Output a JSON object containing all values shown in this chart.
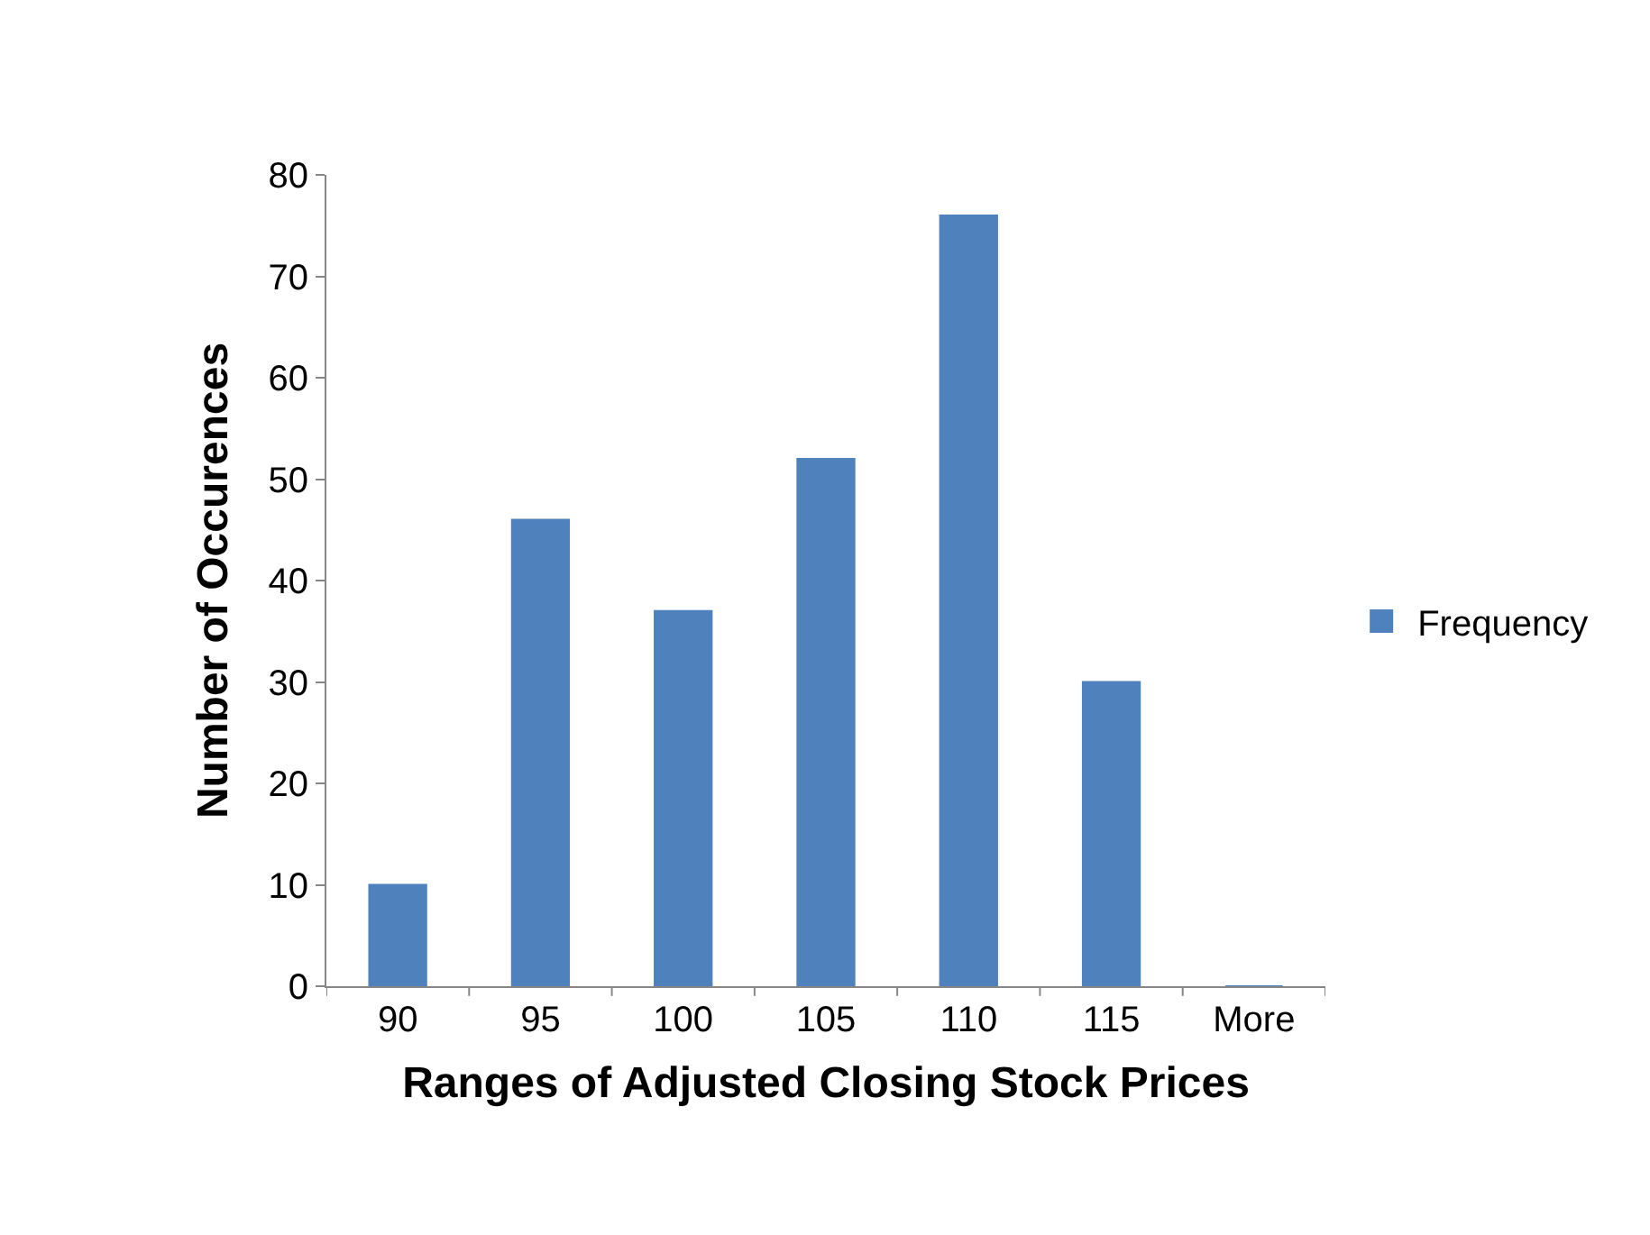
{
  "chart_data": {
    "type": "bar",
    "xlabel": "Ranges of Adjusted Closing Stock Prices",
    "ylabel": "Number of Occurences",
    "categories": [
      "90",
      "95",
      "100",
      "105",
      "110",
      "115",
      "More"
    ],
    "series": [
      {
        "name": "Frequency",
        "color": "#4f81bd",
        "values": [
          10,
          46,
          37,
          52,
          76,
          30,
          0
        ]
      }
    ],
    "ylim": [
      0,
      80
    ],
    "yticks": [
      0,
      10,
      20,
      30,
      40,
      50,
      60,
      70,
      80
    ],
    "legend": "right"
  }
}
